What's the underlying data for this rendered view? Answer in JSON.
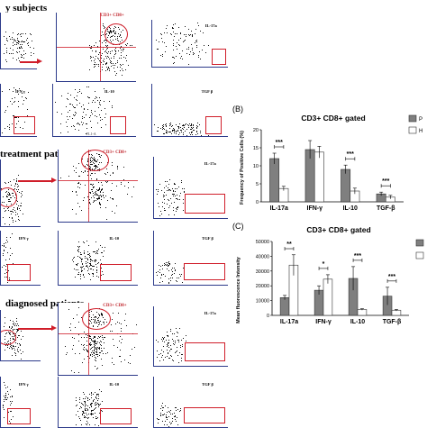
{
  "flow": {
    "section_titles": [
      "y subjects",
      "treatment patients",
      "diagnosed patients"
    ],
    "gate_label": "CD3+ CD8+",
    "marker_labels": [
      "IL-17a",
      "IFN γ",
      "IL-10",
      "TGF β"
    ],
    "axis_label": "FL1-A"
  },
  "charts": {
    "B": {
      "letter": "(B)",
      "title": "CD3+ CD8+ gated",
      "ylabel": "Frequency of Positive Cells (%)",
      "legend": [
        "P",
        "H"
      ],
      "sig": [
        "***",
        "",
        "***",
        "***"
      ]
    },
    "C": {
      "letter": "(C)",
      "title": "CD3+ CD8+ gated",
      "ylabel": "Mean fluorescence Intensity",
      "legend": [
        "",
        ""
      ],
      "sig": [
        "**",
        "*",
        "***",
        "***"
      ]
    }
  },
  "chart_data": [
    {
      "type": "bar",
      "title": "CD3+ CD8+ gated",
      "ylabel": "Frequency of Positive Cells (%)",
      "xlabel": "",
      "categories": [
        "IL-17a",
        "IFN-γ",
        "IL-10",
        "TGF-β"
      ],
      "ylim": [
        0,
        20
      ],
      "yticks": [
        0,
        5,
        10,
        15,
        20
      ],
      "series": [
        {
          "name": "P",
          "color": "#7f7f7f",
          "values": [
            12,
            14.5,
            9,
            2.2
          ],
          "errors": [
            1.5,
            2.5,
            1.2,
            0.5
          ]
        },
        {
          "name": "H",
          "color": "#ffffff",
          "values": [
            3.7,
            13.8,
            3,
            1.3
          ],
          "errors": [
            0.6,
            1.6,
            0.8,
            0.5
          ]
        }
      ],
      "legend_position": "top-right"
    },
    {
      "type": "bar",
      "title": "CD3+ CD8+ gated",
      "ylabel": "Mean fluorescence Intensity",
      "xlabel": "",
      "categories": [
        "IL-17a",
        "IFN-γ",
        "IL-10",
        "TGF-β"
      ],
      "ylim": [
        0,
        50000
      ],
      "yticks": [
        0,
        10000,
        20000,
        30000,
        40000,
        50000
      ],
      "series": [
        {
          "color": "#7f7f7f",
          "values": [
            12000,
            17000,
            25000,
            13000
          ],
          "errors": [
            1500,
            3000,
            8000,
            6000
          ]
        },
        {
          "color": "#ffffff",
          "values": [
            34000,
            24500,
            4000,
            3500
          ],
          "errors": [
            7000,
            3000,
            500,
            500
          ]
        }
      ],
      "legend_position": "top-right"
    }
  ]
}
